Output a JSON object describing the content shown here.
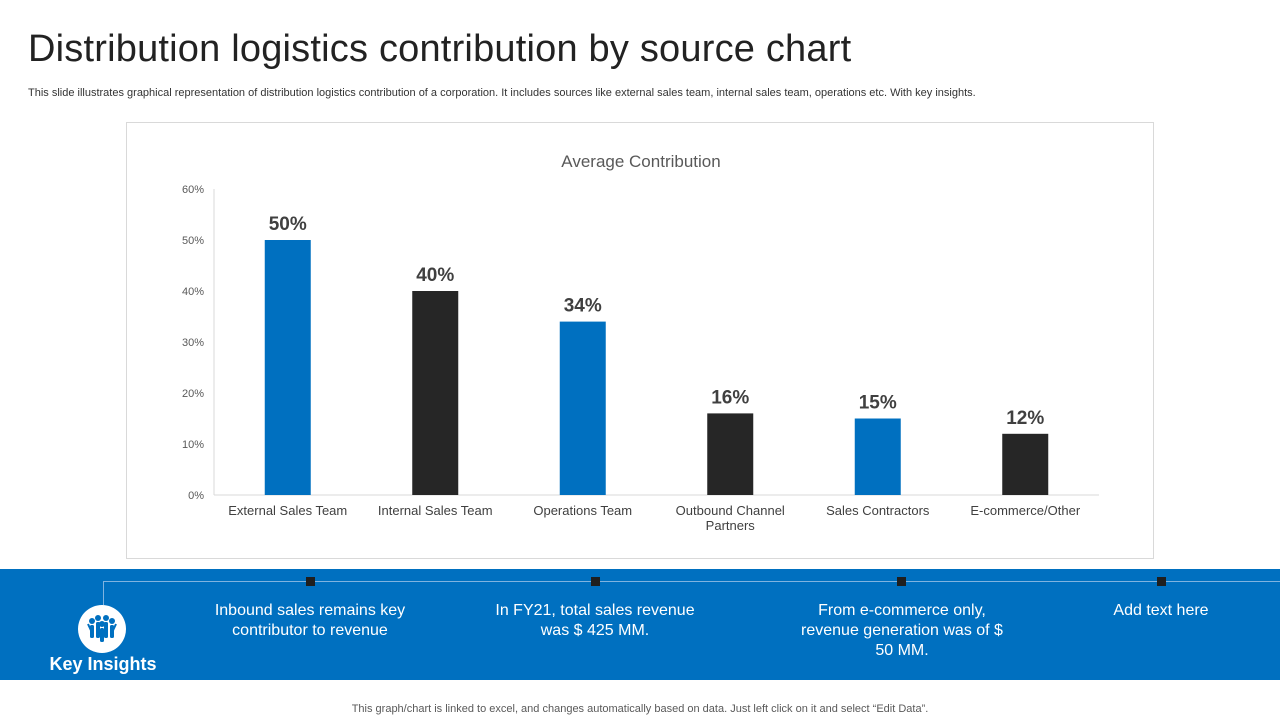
{
  "slide": {
    "title": "Distribution logistics contribution by source chart",
    "subtitle": "This slide illustrates graphical representation of distribution logistics contribution of a corporation. It includes sources like external sales team, internal sales team, operations etc. With key insights.",
    "footer": "This graph/chart is linked to excel, and changes automatically based on data. Just left click on it and select “Edit Data”."
  },
  "chart_data": {
    "type": "bar",
    "title": "Average Contribution",
    "categories": [
      "External Sales Team",
      "Internal Sales Team",
      "Operations Team",
      "Outbound Channel Partners",
      "Sales Contractors",
      "E-commerce/Other"
    ],
    "values": [
      50,
      40,
      34,
      16,
      15,
      12
    ],
    "data_labels": [
      "50%",
      "40%",
      "34%",
      "16%",
      "15%",
      "12%"
    ],
    "ylim": [
      0,
      60
    ],
    "yticks": [
      0,
      10,
      20,
      30,
      40,
      50,
      60
    ],
    "ytick_labels": [
      "0%",
      "10%",
      "20%",
      "30%",
      "40%",
      "50%",
      "60%"
    ],
    "xlabel": "",
    "ylabel": "",
    "grid": false,
    "colors": [
      "#0070c0",
      "#262626",
      "#0070c0",
      "#262626",
      "#0070c0",
      "#262626"
    ]
  },
  "insights": {
    "heading": "Key Insights",
    "icon": "people-group-icon",
    "items": [
      {
        "text": "Inbound sales remains key contributor to revenue"
      },
      {
        "text": "In FY21, total sales revenue was $ 425 MM."
      },
      {
        "text": "From e-commerce only, revenue generation was of $ 50 MM."
      },
      {
        "text": "Add text here"
      }
    ]
  },
  "colors": {
    "accent": "#0070c0",
    "dark": "#262626",
    "text": "#404040"
  }
}
